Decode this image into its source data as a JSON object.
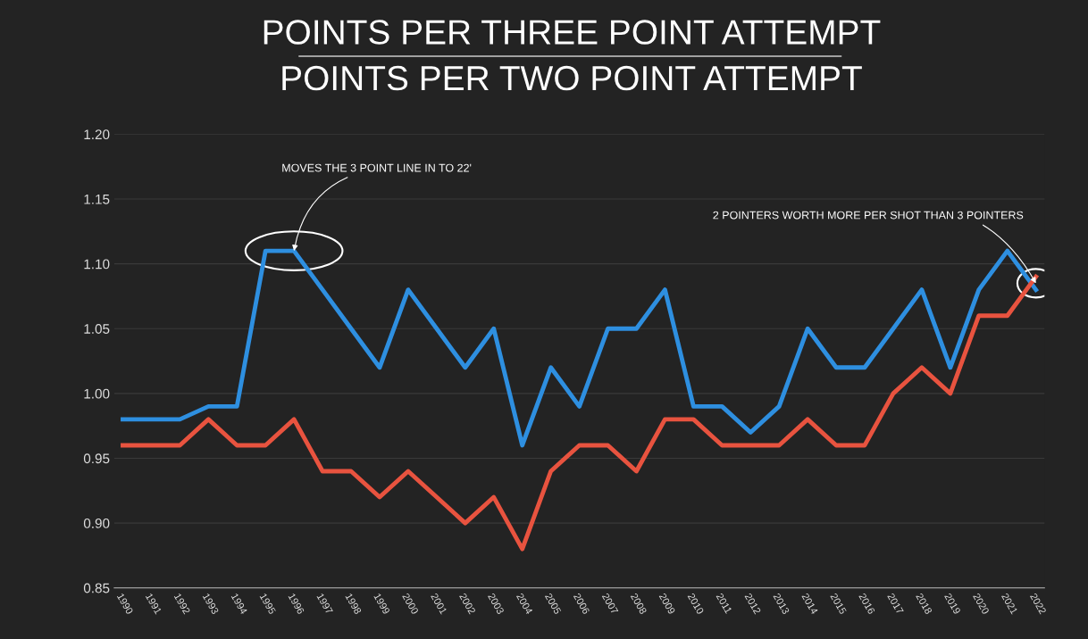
{
  "chart_data": {
    "type": "line",
    "title": "POINTS PER THREE POINT ATTEMPT",
    "subtitle": "POINTS PER TWO POINT ATTEMPT",
    "categories": [
      "1990",
      "1991",
      "1992",
      "1993",
      "1994",
      "1995",
      "1996",
      "1997",
      "1998",
      "1999",
      "2000",
      "2001",
      "2002",
      "2003",
      "2004",
      "2005",
      "2006",
      "2007",
      "2008",
      "2009",
      "2010",
      "2011",
      "2012",
      "2013",
      "2014",
      "2015",
      "2016",
      "2017",
      "2018",
      "2019",
      "2020",
      "2021",
      "2022"
    ],
    "series": [
      {
        "color": "#2e8fe0",
        "values": [
          0.98,
          0.98,
          0.98,
          0.99,
          0.99,
          1.11,
          1.11,
          1.08,
          1.05,
          1.02,
          1.08,
          1.05,
          1.02,
          1.05,
          0.96,
          1.02,
          0.99,
          1.05,
          1.05,
          1.08,
          0.99,
          0.99,
          0.97,
          0.99,
          1.05,
          1.02,
          1.02,
          1.05,
          1.08,
          1.02,
          1.08,
          1.11,
          1.08
        ]
      },
      {
        "color": "#e8533f",
        "values": [
          0.96,
          0.96,
          0.96,
          0.98,
          0.96,
          0.96,
          0.98,
          0.94,
          0.94,
          0.92,
          0.94,
          0.92,
          0.9,
          0.92,
          0.88,
          0.94,
          0.96,
          0.96,
          0.94,
          0.98,
          0.98,
          0.96,
          0.96,
          0.96,
          0.98,
          0.96,
          0.96,
          1.0,
          1.02,
          1.0,
          1.06,
          1.06,
          1.09
        ]
      }
    ],
    "ylim": [
      0.85,
      1.2
    ],
    "yticks": [
      {
        "value": 0.85,
        "label": "0.85"
      },
      {
        "value": 0.9,
        "label": "0.90"
      },
      {
        "value": 0.95,
        "label": "0.95"
      },
      {
        "value": 1.0,
        "label": "1.00"
      },
      {
        "value": 1.05,
        "label": "1.05"
      },
      {
        "value": 1.1,
        "label": "1.10"
      },
      {
        "value": 1.15,
        "label": "1.15"
      },
      {
        "value": 1.2,
        "label": "1.20"
      }
    ],
    "grid": "y",
    "marker": "none",
    "line_style": "solid",
    "annotations": [
      {
        "text": "MOVES THE 3 POINT LINE IN TO 22'",
        "x": "1996",
        "y": 1.11
      },
      {
        "text": "2 POINTERS WORTH MORE PER SHOT THAN 3 POINTERS",
        "x": "2022",
        "y": 1.085
      }
    ]
  }
}
